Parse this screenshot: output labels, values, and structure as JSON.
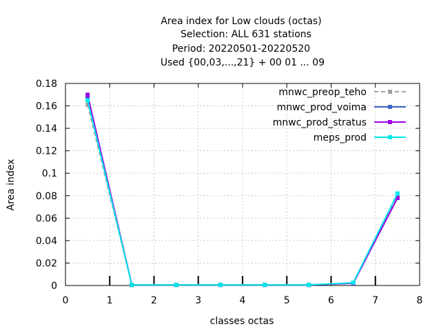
{
  "chart_data": {
    "type": "line",
    "title_lines": [
      "Area index  for Low clouds (octas)",
      "Selection: ALL    631 stations",
      "Period: 20220501-20220520",
      "Used {00,03,...,21} + 00 01 ... 09"
    ],
    "xlabel": "classes octas",
    "ylabel": "Area index",
    "xlim": [
      0,
      8
    ],
    "ylim": [
      0,
      0.18
    ],
    "x_ticks": [
      "0",
      "1",
      "2",
      "3",
      "4",
      "5",
      "6",
      "7",
      "8"
    ],
    "y_ticks": [
      "0",
      "0.02",
      "0.04",
      "0.06",
      "0.08",
      "0.1",
      "0.12",
      "0.14",
      "0.16",
      "0.18"
    ],
    "grid": true,
    "legend_position": "top-right",
    "x": [
      0.5,
      1.5,
      2.5,
      3.5,
      4.5,
      5.5,
      6.5,
      7.5
    ],
    "series": [
      {
        "name": "mnwc_preop_teho",
        "color": "#a0a0a0",
        "dashed": true,
        "values": [
          0.161,
          0.0005,
          0.0005,
          0.0005,
          0.0005,
          0.0005,
          0.002,
          0.08
        ]
      },
      {
        "name": "mnwc_prod_voima",
        "color": "#3c64c8",
        "dashed": false,
        "values": [
          0.168,
          0.0005,
          0.0005,
          0.0005,
          0.0005,
          0.0005,
          0.002,
          0.078
        ]
      },
      {
        "name": "mnwc_prod_stratus",
        "color": "#a000e6",
        "dashed": false,
        "values": [
          0.17,
          0.0005,
          0.0005,
          0.0005,
          0.0005,
          0.0005,
          0.002,
          0.078
        ]
      },
      {
        "name": "meps_prod",
        "color": "#00e8e8",
        "dashed": false,
        "values": [
          0.165,
          0.0005,
          0.0005,
          0.0005,
          0.0005,
          0.0005,
          0.0025,
          0.082
        ]
      }
    ]
  }
}
